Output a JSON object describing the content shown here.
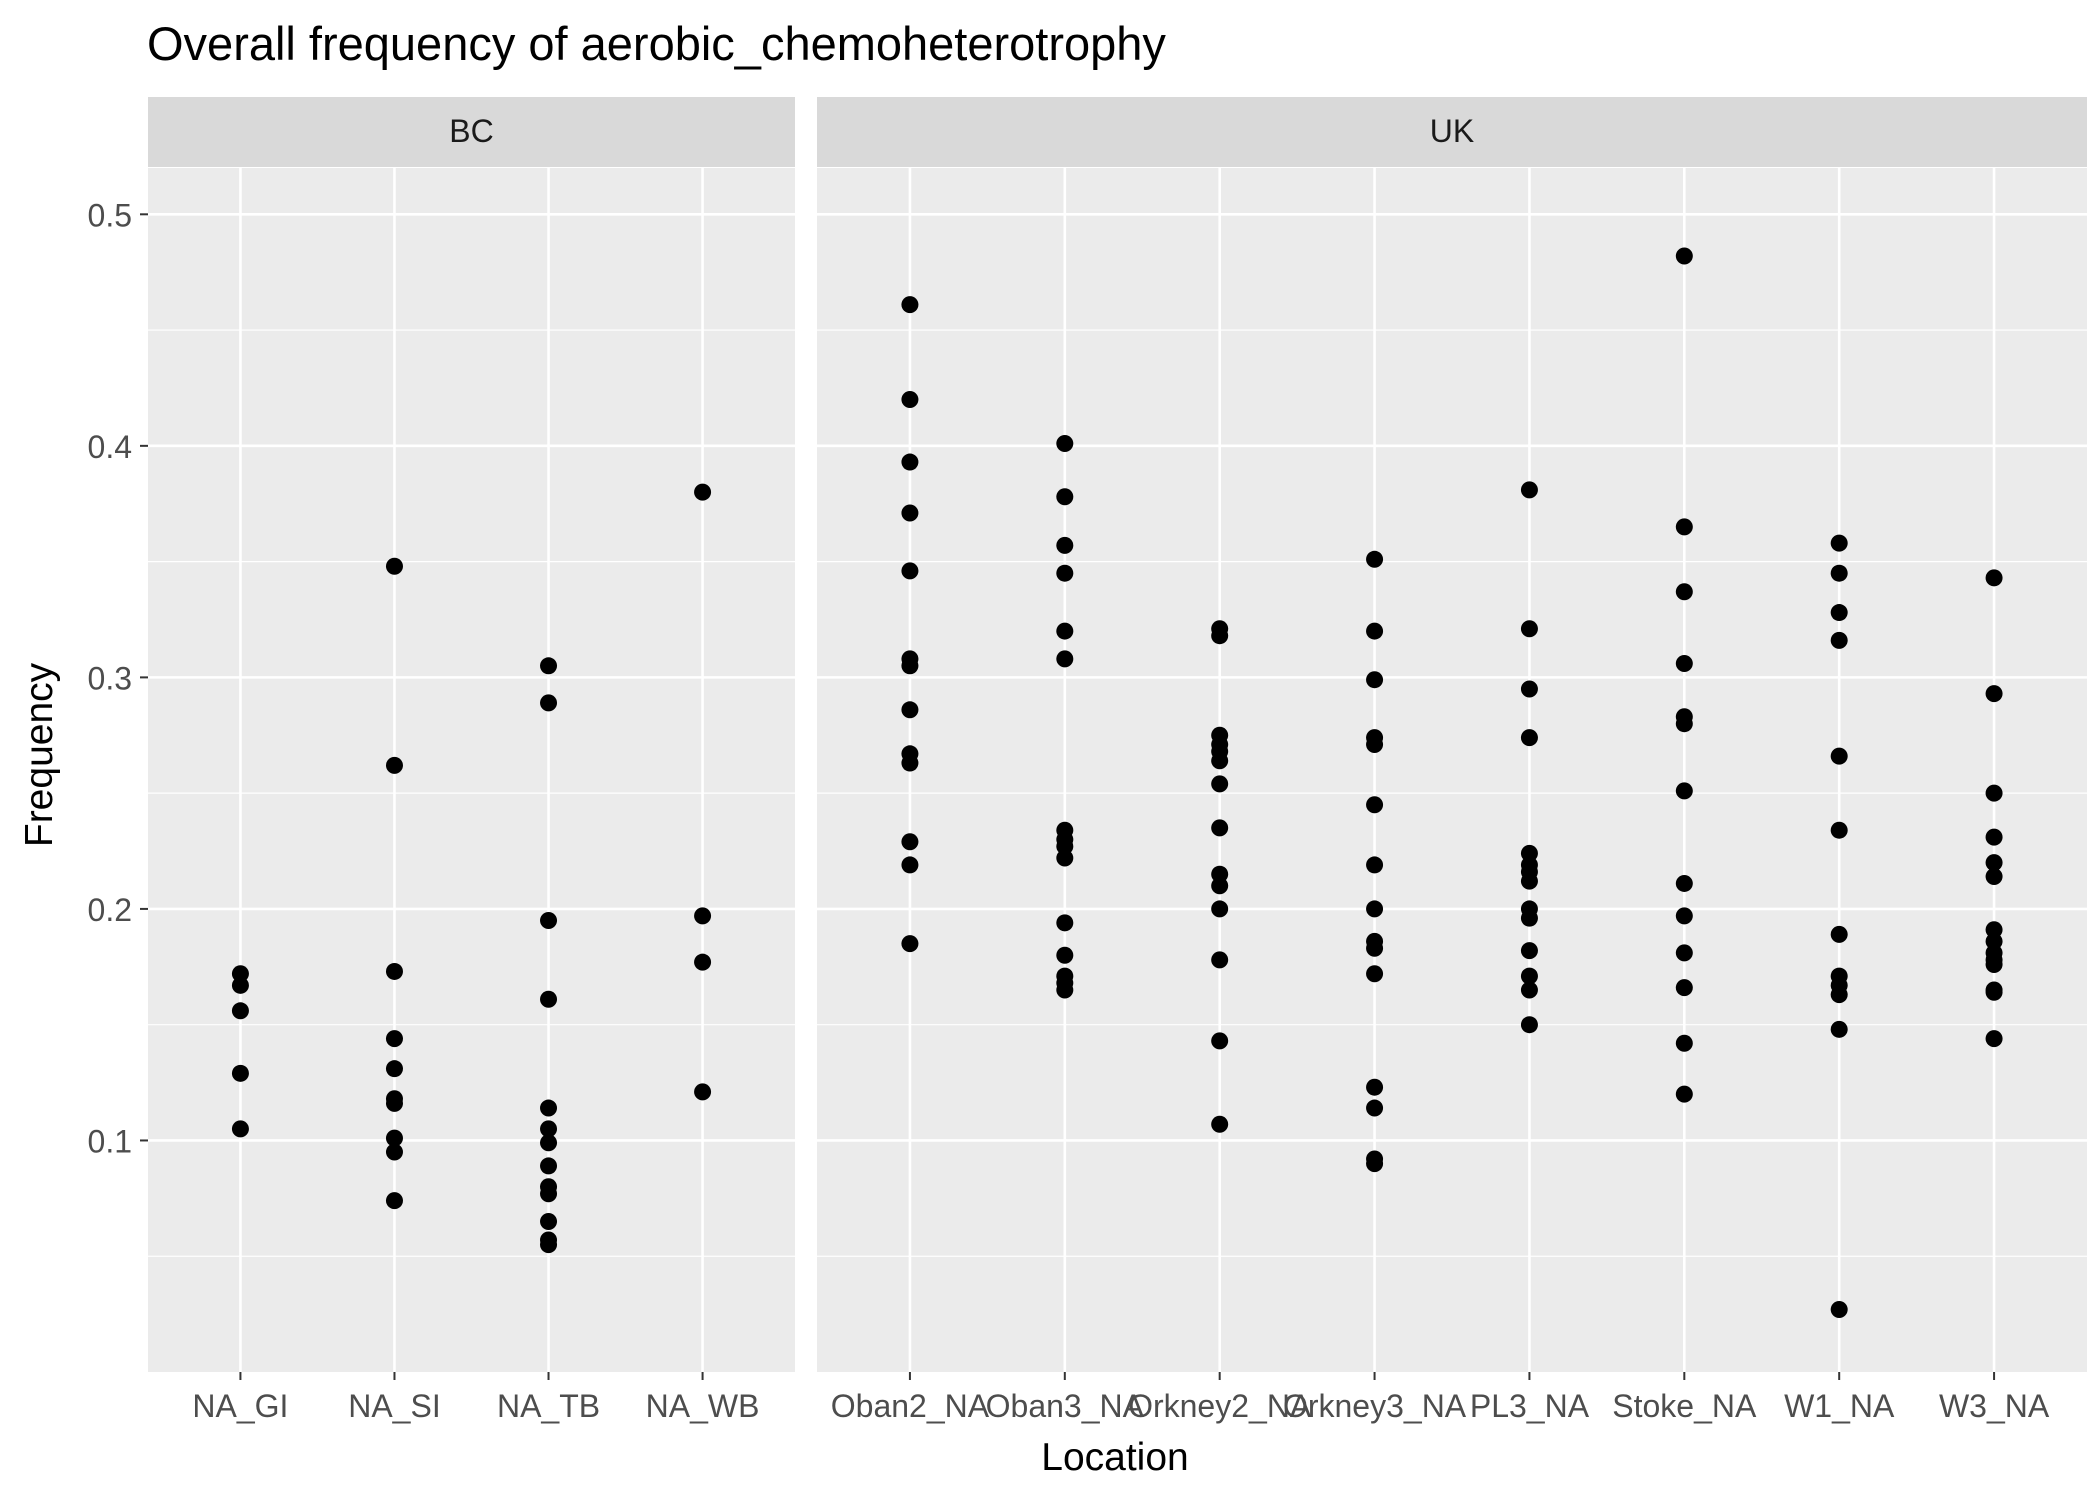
{
  "chart_data": {
    "type": "scatter",
    "title": "Overall frequency of aerobic_chemoheterotrophy",
    "xlabel": "Location",
    "ylabel": "Frequency",
    "ylim": [
      0.0,
      0.52
    ],
    "y_ticks": [
      0.1,
      0.2,
      0.3,
      0.4,
      0.5
    ],
    "y_tick_labels": [
      "0.1",
      "0.2",
      "0.3",
      "0.4",
      "0.5"
    ],
    "grid": true,
    "colors": {
      "panel_bg": "#EBEBEB",
      "strip_bg": "#D9D9D9",
      "grid": "#FFFFFF",
      "point": "#000000",
      "axis_text": "#4D4D4D",
      "title_text": "#000000"
    },
    "facets": [
      {
        "name": "BC",
        "categories": [
          "NA_GI",
          "NA_SI",
          "NA_TB",
          "NA_WB"
        ],
        "points": {
          "NA_GI": [
            0.172,
            0.167,
            0.156,
            0.129,
            0.105
          ],
          "NA_SI": [
            0.348,
            0.262,
            0.173,
            0.144,
            0.131,
            0.118,
            0.116,
            0.101,
            0.095,
            0.074
          ],
          "NA_TB": [
            0.305,
            0.289,
            0.195,
            0.161,
            0.114,
            0.105,
            0.099,
            0.089,
            0.08,
            0.077,
            0.065,
            0.057,
            0.055
          ],
          "NA_WB": [
            0.38,
            0.197,
            0.177,
            0.121
          ]
        }
      },
      {
        "name": "UK",
        "categories": [
          "Oban2_NA",
          "Oban3_NA",
          "Orkney2_NA",
          "Orkney3_NA",
          "PL3_NA",
          "Stoke_NA",
          "W1_NA",
          "W3_NA"
        ],
        "points": {
          "Oban2_NA": [
            0.461,
            0.42,
            0.393,
            0.371,
            0.346,
            0.308,
            0.305,
            0.286,
            0.267,
            0.263,
            0.229,
            0.219,
            0.185
          ],
          "Oban3_NA": [
            0.401,
            0.378,
            0.357,
            0.345,
            0.32,
            0.308,
            0.234,
            0.23,
            0.227,
            0.222,
            0.194,
            0.18,
            0.171,
            0.168,
            0.165
          ],
          "Orkney2_NA": [
            0.321,
            0.318,
            0.275,
            0.271,
            0.268,
            0.264,
            0.254,
            0.235,
            0.215,
            0.21,
            0.2,
            0.178,
            0.143,
            0.107
          ],
          "Orkney3_NA": [
            0.351,
            0.32,
            0.299,
            0.274,
            0.271,
            0.245,
            0.219,
            0.2,
            0.186,
            0.183,
            0.172,
            0.123,
            0.114,
            0.092,
            0.09
          ],
          "PL3_NA": [
            0.381,
            0.321,
            0.295,
            0.274,
            0.224,
            0.219,
            0.216,
            0.212,
            0.2,
            0.196,
            0.182,
            0.171,
            0.165,
            0.15
          ],
          "Stoke_NA": [
            0.482,
            0.365,
            0.337,
            0.306,
            0.283,
            0.28,
            0.251,
            0.211,
            0.197,
            0.181,
            0.166,
            0.142,
            0.12
          ],
          "W1_NA": [
            0.358,
            0.345,
            0.328,
            0.316,
            0.266,
            0.234,
            0.189,
            0.171,
            0.167,
            0.163,
            0.148,
            0.027
          ],
          "W3_NA": [
            0.343,
            0.293,
            0.25,
            0.231,
            0.22,
            0.214,
            0.191,
            0.186,
            0.181,
            0.178,
            0.176,
            0.165,
            0.164,
            0.144
          ]
        }
      }
    ]
  }
}
